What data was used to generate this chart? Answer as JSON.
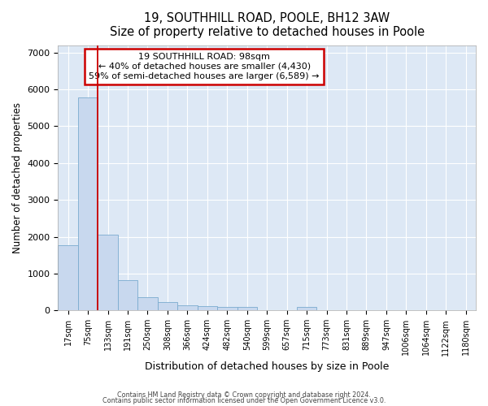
{
  "title1": "19, SOUTHHILL ROAD, POOLE, BH12 3AW",
  "title2": "Size of property relative to detached houses in Poole",
  "xlabel": "Distribution of detached houses by size in Poole",
  "ylabel": "Number of detached properties",
  "bar_labels": [
    "17sqm",
    "75sqm",
    "133sqm",
    "191sqm",
    "250sqm",
    "308sqm",
    "366sqm",
    "424sqm",
    "482sqm",
    "540sqm",
    "599sqm",
    "657sqm",
    "715sqm",
    "773sqm",
    "831sqm",
    "889sqm",
    "947sqm",
    "1006sqm",
    "1064sqm",
    "1122sqm",
    "1180sqm"
  ],
  "bar_values": [
    1780,
    5780,
    2060,
    830,
    370,
    230,
    130,
    115,
    105,
    95,
    0,
    0,
    90,
    0,
    0,
    0,
    0,
    0,
    0,
    0,
    0
  ],
  "bar_color": "#c8d8ee",
  "bar_edge_color": "#7aabcf",
  "vline_color": "#cc0000",
  "annotation_title": "19 SOUTHHILL ROAD: 98sqm",
  "annotation_line1": "← 40% of detached houses are smaller (4,430)",
  "annotation_line2": "59% of semi-detached houses are larger (6,589) →",
  "annotation_box_color": "white",
  "annotation_box_edge": "#cc0000",
  "ylim": [
    0,
    7200
  ],
  "yticks": [
    0,
    1000,
    2000,
    3000,
    4000,
    5000,
    6000,
    7000
  ],
  "footer1": "Contains HM Land Registry data © Crown copyright and database right 2024.",
  "footer2": "Contains public sector information licensed under the Open Government Licence v3.0.",
  "bg_color": "#ffffff",
  "plot_bg_color": "#dde8f5"
}
